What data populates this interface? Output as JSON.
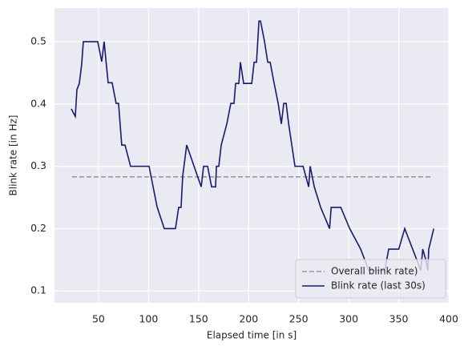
{
  "chart_data": {
    "type": "line",
    "xlabel": "Elapsed time [in s]",
    "ylabel": "Blink rate [in Hz]",
    "x": [
      22.8,
      26.8,
      28.4,
      30.8,
      33.2,
      34.8,
      49.2,
      53.2,
      55.6,
      59.6,
      63.6,
      67.6,
      70,
      73.2,
      76.5,
      82,
      100.5,
      108.5,
      115.7,
      126.9,
      130.1,
      132.5,
      134.1,
      138.1,
      152.6,
      155,
      159,
      163,
      167,
      167.8,
      170.2,
      172.6,
      178.2,
      182.2,
      185.4,
      187,
      190.2,
      191.8,
      195,
      203.1,
      205.5,
      207.9,
      210.3,
      211.9,
      215.9,
      219.1,
      221.5,
      225.5,
      229.5,
      232.7,
      235.1,
      237.5,
      240,
      246.3,
      254.4,
      260,
      261.5,
      265.6,
      272,
      280.9,
      282.5,
      292.1,
      301,
      312,
      320,
      336,
      340,
      350,
      356,
      368,
      372,
      374,
      377,
      379,
      380,
      385
    ],
    "series": [
      {
        "name": "Overall blink rate)",
        "color": "#999999",
        "dashed": true,
        "x": [
          23.6,
          384
        ],
        "values": [
          0.283,
          0.283
        ]
      },
      {
        "name": "Blink rate (last 30s)",
        "color": "#191970",
        "dashed": false,
        "values": [
          0.392,
          0.38,
          0.423,
          0.433,
          0.464,
          0.5,
          0.5,
          0.468,
          0.5,
          0.434,
          0.434,
          0.401,
          0.401,
          0.334,
          0.334,
          0.3,
          0.3,
          0.235,
          0.2,
          0.2,
          0.234,
          0.234,
          0.284,
          0.334,
          0.267,
          0.3,
          0.3,
          0.267,
          0.267,
          0.3,
          0.3,
          0.334,
          0.368,
          0.401,
          0.401,
          0.433,
          0.433,
          0.467,
          0.433,
          0.433,
          0.467,
          0.467,
          0.533,
          0.533,
          0.5,
          0.467,
          0.467,
          0.433,
          0.401,
          0.368,
          0.401,
          0.401,
          0.368,
          0.3,
          0.3,
          0.267,
          0.3,
          0.267,
          0.234,
          0.2,
          0.234,
          0.234,
          0.2,
          0.167,
          0.133,
          0.133,
          0.167,
          0.167,
          0.2,
          0.15,
          0.133,
          0.167,
          0.15,
          0.133,
          0.167,
          0.2
        ]
      }
    ],
    "xlim": [
      6,
      400
    ],
    "ylim": [
      0.081,
      0.554
    ],
    "xticks": [
      50,
      100,
      150,
      200,
      250,
      300,
      350,
      400
    ],
    "yticks": [
      0.1,
      0.2,
      0.3,
      0.4,
      0.5
    ],
    "grid": true,
    "legend": "lower right"
  }
}
